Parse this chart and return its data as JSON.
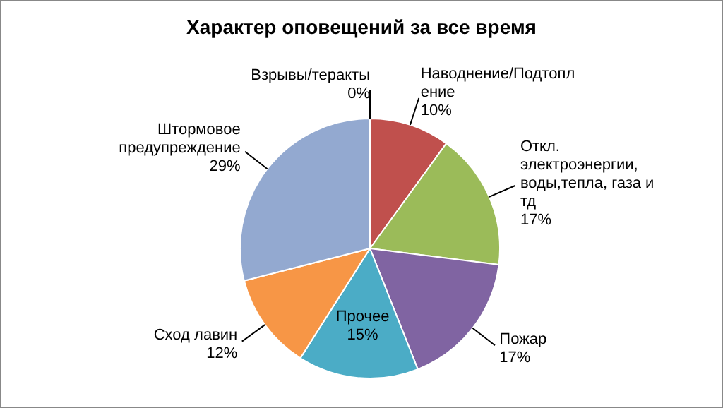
{
  "chart_data": {
    "type": "pie",
    "title": "Характер оповещений за все время",
    "categories": [
      "Взрывы/теракты",
      "Наводнение/Подтопление",
      "Откл. электроэнергии, воды,тепла, газа и тд",
      "Пожар",
      "Прочее",
      "Сход лавин",
      "Штормовое предупреждение"
    ],
    "values": [
      0,
      10,
      17,
      17,
      15,
      12,
      29
    ],
    "value_labels": [
      "0%",
      "10%",
      "17%",
      "17%",
      "15%",
      "12%",
      "29%"
    ],
    "colors": [
      "#4f81bd",
      "#c0504d",
      "#9bbb59",
      "#8064a2",
      "#4bacc6",
      "#f79646",
      "#93a9d0"
    ],
    "legend": false
  }
}
